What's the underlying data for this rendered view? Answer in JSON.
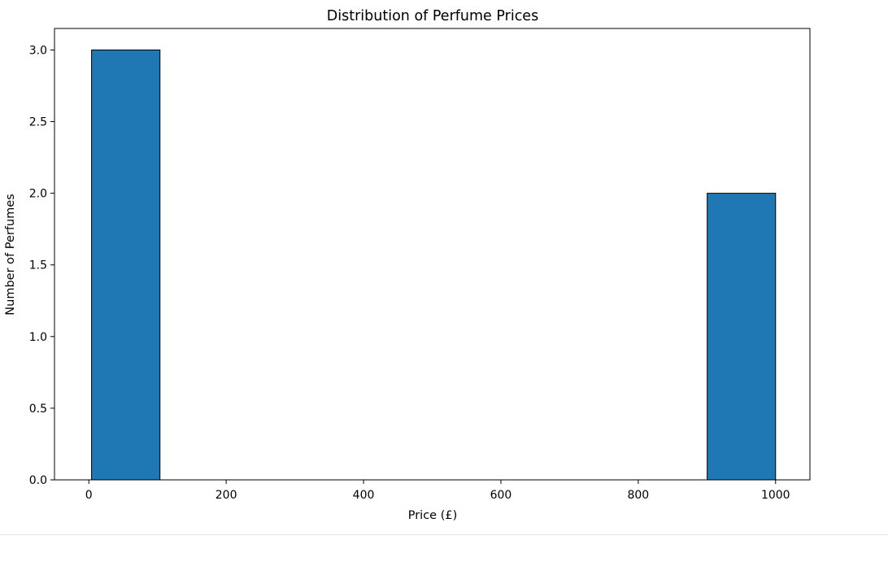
{
  "chart_data": {
    "type": "bar",
    "title": "Distribution of Perfume Prices",
    "xlabel": "Price (£)",
    "ylabel": "Number of Perfumes",
    "xlim": [
      -50,
      1050
    ],
    "ylim": [
      0,
      3.15
    ],
    "xticks": [
      0,
      200,
      400,
      600,
      800,
      1000
    ],
    "xtick_labels": [
      "0",
      "200",
      "400",
      "600",
      "800",
      "1000"
    ],
    "yticks": [
      0,
      0.5,
      1.0,
      1.5,
      2.0,
      2.5,
      3.0
    ],
    "ytick_labels": [
      "0.0",
      "0.5",
      "1.0",
      "1.5",
      "2.0",
      "2.5",
      "3.0"
    ],
    "bins": [
      {
        "start": 4,
        "end": 103.6,
        "count": 3
      },
      {
        "start": 103.6,
        "end": 203.2,
        "count": 0
      },
      {
        "start": 203.2,
        "end": 302.8,
        "count": 0
      },
      {
        "start": 302.8,
        "end": 402.4,
        "count": 0
      },
      {
        "start": 402.4,
        "end": 502,
        "count": 0
      },
      {
        "start": 502,
        "end": 601.6,
        "count": 0
      },
      {
        "start": 601.6,
        "end": 701.2,
        "count": 0
      },
      {
        "start": 701.2,
        "end": 800.8,
        "count": 0
      },
      {
        "start": 800.8,
        "end": 900.4,
        "count": 0
      },
      {
        "start": 900.4,
        "end": 1000,
        "count": 2
      }
    ],
    "bar_color": "#1f77b4",
    "edge_color": "#000000",
    "grid": false,
    "legend": false
  }
}
